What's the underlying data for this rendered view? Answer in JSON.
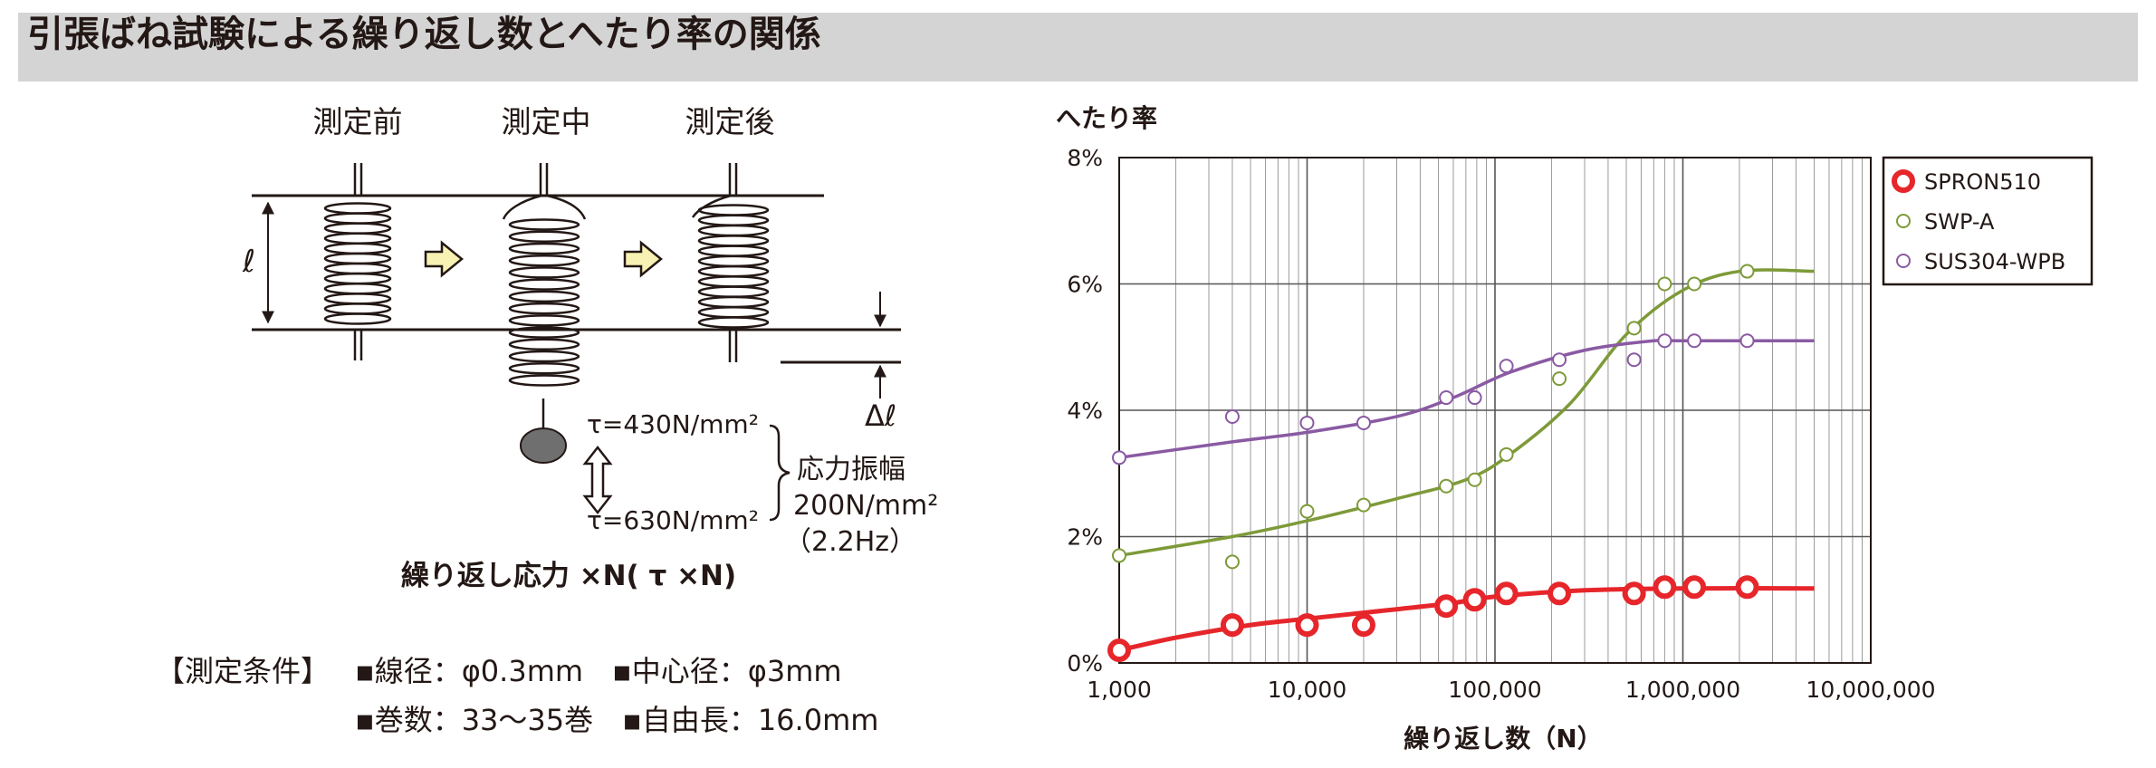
{
  "page_title": "引張ばね試験による繰り返し数とへたり率の関係",
  "diagram": {
    "stage_labels": [
      "測定前",
      "測定中",
      "測定後"
    ],
    "length_symbol": "ℓ",
    "delta_symbol": "Δℓ",
    "tau_upper": "τ=430N/mm²",
    "tau_lower": "τ=630N/mm²",
    "amplitude_label": "応力振幅",
    "amplitude_value": "200N/mm²",
    "frequency": "（2.2Hz）",
    "caption": "繰り返し応力 ×N( τ ×N)",
    "conditions_label": "【測定条件】",
    "conditions_line1": "▪線径：φ0.3mm　▪中心径：φ3mm",
    "conditions_line2": "▪巻数：33～35巻　▪自由長：16.0mm"
  },
  "chart_data": {
    "type": "scatter",
    "x_scale": "log",
    "xlabel": "繰り返し数（N）",
    "ylabel": "へたり率",
    "xlim": [
      1000,
      10000000
    ],
    "ylim": [
      0,
      8
    ],
    "x_ticks": [
      "1,000",
      "10,000",
      "100,000",
      "1,000,000",
      "10,000,000"
    ],
    "y_ticks": [
      "0%",
      "2%",
      "4%",
      "6%",
      "8%"
    ],
    "grid": true,
    "legend_position": "top-right",
    "series": [
      {
        "name": "SPRON510",
        "color": "#e6262b",
        "points": [
          [
            1000,
            0.2
          ],
          [
            4000,
            0.6
          ],
          [
            10000,
            0.6
          ],
          [
            20000,
            0.6
          ],
          [
            55000,
            0.9
          ],
          [
            78000,
            1.0
          ],
          [
            115000,
            1.1
          ],
          [
            220000,
            1.1
          ],
          [
            550000,
            1.1
          ],
          [
            800000,
            1.2
          ],
          [
            1150000,
            1.2
          ],
          [
            2200000,
            1.2
          ]
        ],
        "trend": [
          [
            1000,
            0.2
          ],
          [
            2000,
            0.4
          ],
          [
            5000,
            0.6
          ],
          [
            10000,
            0.7
          ],
          [
            30000,
            0.85
          ],
          [
            60000,
            0.95
          ],
          [
            100000,
            1.05
          ],
          [
            300000,
            1.15
          ],
          [
            1000000,
            1.18
          ],
          [
            5000000,
            1.18
          ]
        ]
      },
      {
        "name": "SWP-A",
        "color": "#7d9a38",
        "points": [
          [
            1000,
            1.7
          ],
          [
            4000,
            1.6
          ],
          [
            10000,
            2.4
          ],
          [
            20000,
            2.5
          ],
          [
            55000,
            2.8
          ],
          [
            78000,
            2.9
          ],
          [
            115000,
            3.3
          ],
          [
            220000,
            4.5
          ],
          [
            550000,
            5.3
          ],
          [
            800000,
            6.0
          ],
          [
            1150000,
            6.0
          ],
          [
            2200000,
            6.2
          ]
        ],
        "trend": [
          [
            1000,
            1.7
          ],
          [
            4000,
            2.0
          ],
          [
            10000,
            2.25
          ],
          [
            30000,
            2.6
          ],
          [
            70000,
            2.9
          ],
          [
            120000,
            3.3
          ],
          [
            250000,
            4.1
          ],
          [
            500000,
            5.2
          ],
          [
            1000000,
            5.9
          ],
          [
            2000000,
            6.2
          ],
          [
            5000000,
            6.2
          ]
        ]
      },
      {
        "name": "SUS304-WPB",
        "color": "#8a5aa3",
        "points": [
          [
            1000,
            3.25
          ],
          [
            4000,
            3.9
          ],
          [
            10000,
            3.8
          ],
          [
            20000,
            3.8
          ],
          [
            55000,
            4.2
          ],
          [
            78000,
            4.2
          ],
          [
            115000,
            4.7
          ],
          [
            220000,
            4.8
          ],
          [
            550000,
            4.8
          ],
          [
            800000,
            5.1
          ],
          [
            1150000,
            5.1
          ],
          [
            2200000,
            5.1
          ]
        ],
        "trend": [
          [
            1000,
            3.25
          ],
          [
            4000,
            3.5
          ],
          [
            10000,
            3.65
          ],
          [
            30000,
            3.9
          ],
          [
            60000,
            4.2
          ],
          [
            120000,
            4.6
          ],
          [
            300000,
            4.95
          ],
          [
            700000,
            5.1
          ],
          [
            1000000,
            5.1
          ],
          [
            5000000,
            5.1
          ]
        ]
      }
    ]
  }
}
